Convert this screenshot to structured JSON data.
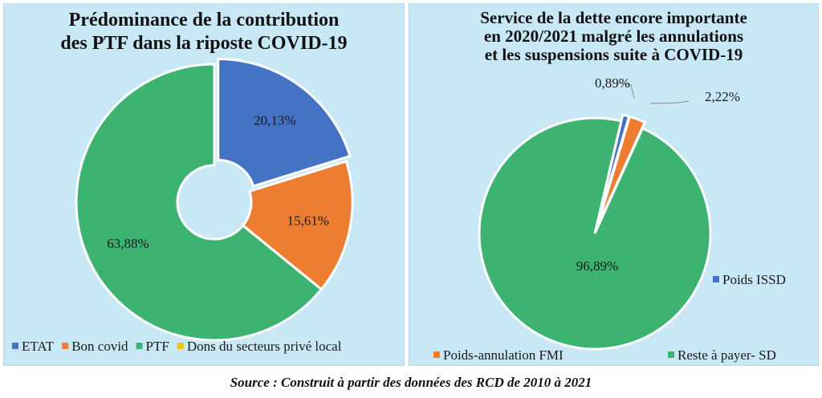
{
  "source": "Source : Construit à partir des données des RCD de 2010 à 2021",
  "chart_data": [
    {
      "type": "pie",
      "variant": "donut",
      "title": "Prédominance de la contribution des PTF dans la riposte COVID-19",
      "title_lines": [
        "Prédominance de la contribution",
        "des PTF dans la riposte COVID-19"
      ],
      "categories": [
        "ETAT",
        "Bon covid",
        "PTF",
        "Dons du secteurs privé local"
      ],
      "values": [
        20.13,
        15.61,
        63.88,
        0
      ],
      "labels": [
        "20,13%",
        "15,61%",
        "63,88%",
        ""
      ],
      "colors": [
        "#4472c4",
        "#ed7d31",
        "#3cb371",
        "#ffc000"
      ],
      "legend_position": "bottom"
    },
    {
      "type": "pie",
      "title": "Service de la dette encore importante en 2020/2021 malgré les annulations et les suspensions suite à COVID-19",
      "title_lines": [
        "Service de la dette encore importante",
        "en 2020/2021 malgré les annulations",
        "et les suspensions suite à COVID-19"
      ],
      "categories": [
        "Poids ISSD",
        "Poids-annulation FMI",
        "Reste à payer- SD"
      ],
      "values": [
        0.89,
        2.22,
        96.89
      ],
      "labels": [
        "0,89%",
        "2,22%",
        "96,89%"
      ],
      "colors": [
        "#4472c4",
        "#ed7d31",
        "#3cb371"
      ],
      "legend_position": "right"
    }
  ]
}
